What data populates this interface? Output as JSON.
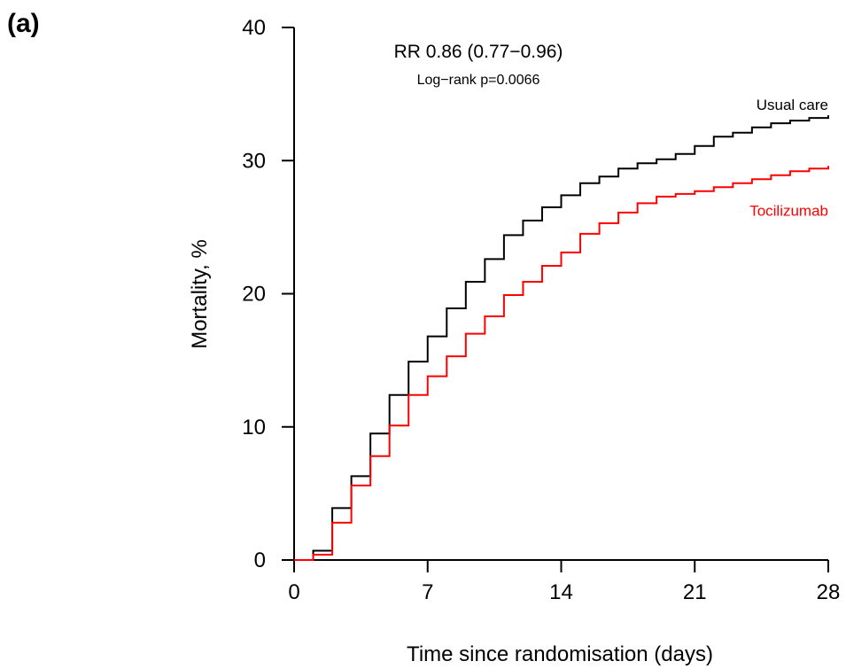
{
  "panel_label": "(a)",
  "chart_data": {
    "type": "line",
    "title": "",
    "xlabel": "Time since randomisation (days)",
    "ylabel": "Mortality, %",
    "xlim": [
      0,
      28
    ],
    "ylim": [
      0,
      40
    ],
    "x_ticks": [
      "0",
      "7",
      "14",
      "21",
      "28"
    ],
    "y_ticks": [
      "0",
      "10",
      "20",
      "30",
      "40"
    ],
    "grid": false,
    "legend": "direct labels at right end of curves",
    "annotations": {
      "rr": "RR 0.86 (0.77−0.96)",
      "p": "Log−rank p=0.0066"
    },
    "x": [
      0,
      1,
      2,
      3,
      4,
      5,
      6,
      7,
      8,
      9,
      10,
      11,
      12,
      13,
      14,
      15,
      16,
      17,
      18,
      19,
      20,
      21,
      22,
      23,
      24,
      25,
      26,
      27,
      28
    ],
    "series": [
      {
        "name": "Usual care",
        "color": "#000000",
        "values": [
          0,
          0.7,
          3.9,
          6.3,
          9.5,
          12.4,
          14.9,
          16.8,
          18.9,
          20.9,
          22.6,
          24.4,
          25.5,
          26.5,
          27.4,
          28.3,
          28.8,
          29.4,
          29.8,
          30.1,
          30.5,
          31.1,
          31.8,
          32.1,
          32.5,
          32.8,
          33.0,
          33.2,
          33.4
        ]
      },
      {
        "name": "Tocilizumab",
        "color": "#ff0000",
        "values": [
          0,
          0.4,
          2.8,
          5.6,
          7.8,
          10.1,
          12.4,
          13.8,
          15.3,
          17.0,
          18.3,
          19.9,
          20.9,
          22.1,
          23.1,
          24.5,
          25.3,
          26.1,
          26.8,
          27.3,
          27.5,
          27.7,
          28.0,
          28.3,
          28.6,
          28.9,
          29.2,
          29.4,
          29.6
        ]
      }
    ]
  }
}
